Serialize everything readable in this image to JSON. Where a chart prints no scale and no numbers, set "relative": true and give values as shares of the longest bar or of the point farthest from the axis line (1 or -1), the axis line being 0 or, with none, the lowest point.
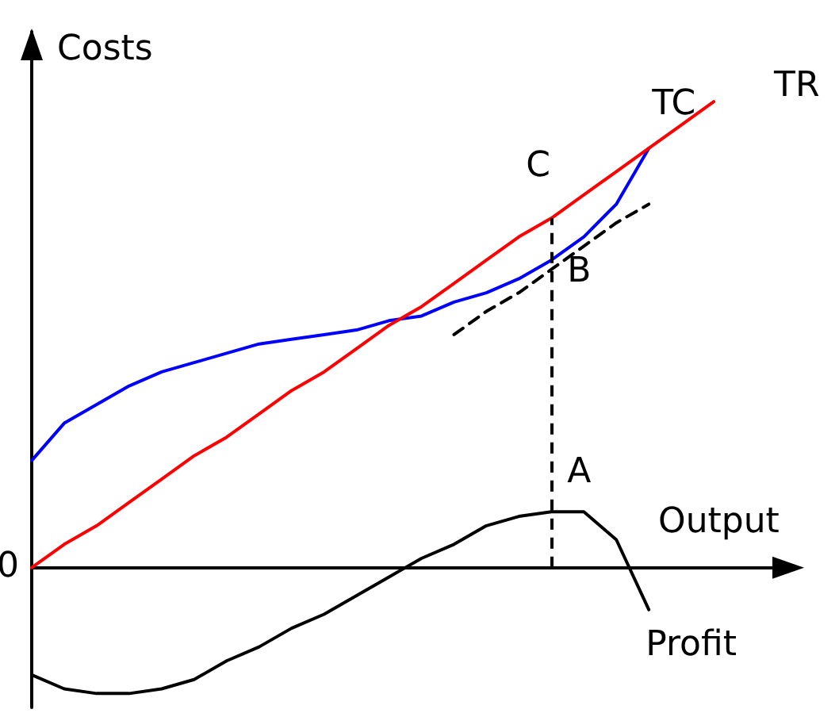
{
  "chart_data": {
    "type": "line",
    "relative": true,
    "xlabel": "Output",
    "ylabel": "Costs",
    "grid": false,
    "legend": false,
    "tick_labels": false,
    "marker": "none",
    "categories": [
      null,
      null,
      null,
      null,
      null,
      null,
      null,
      null,
      null,
      null,
      null,
      null,
      null,
      null,
      null,
      null,
      null,
      null,
      null,
      null,
      null,
      null,
      null,
      null
    ],
    "series": [
      {
        "name": "TC",
        "color": "#0000ff",
        "values": [
          0.23,
          0.31,
          0.35,
          0.39,
          0.42,
          0.44,
          0.46,
          0.48,
          0.49,
          0.5,
          0.51,
          0.53,
          0.54,
          0.57,
          0.59,
          0.62,
          0.66,
          0.71,
          0.78,
          0.9,
          null,
          null,
          null,
          null
        ]
      },
      {
        "name": "TR",
        "color": "#ff0000",
        "values": [
          0,
          0.05,
          0.09,
          0.14,
          0.19,
          0.24,
          0.28,
          0.33,
          0.38,
          0.42,
          0.47,
          0.52,
          0.56,
          0.61,
          0.66,
          0.71,
          0.75,
          0.8,
          0.85,
          0.9,
          0.95,
          1,
          null,
          null
        ]
      },
      {
        "name": "Profit",
        "color": "#000000",
        "values": [
          -0.23,
          -0.26,
          -0.27,
          -0.27,
          -0.26,
          -0.24,
          -0.2,
          -0.17,
          -0.13,
          -0.1,
          -0.06,
          -0.02,
          0.02,
          0.05,
          0.09,
          0.11,
          0.12,
          0.12,
          0.06,
          -0.09,
          null,
          null,
          null,
          null
        ]
      },
      {
        "color": "#000000",
        "line_style": "dashed",
        "values": [
          null,
          null,
          null,
          null,
          null,
          null,
          null,
          null,
          null,
          null,
          null,
          null,
          null,
          0.5,
          0.55,
          0.59,
          0.64,
          0.69,
          0.74,
          0.78,
          null,
          null,
          null,
          null
        ]
      }
    ],
    "annotations": [
      "0",
      "C",
      "B",
      "A"
    ]
  }
}
